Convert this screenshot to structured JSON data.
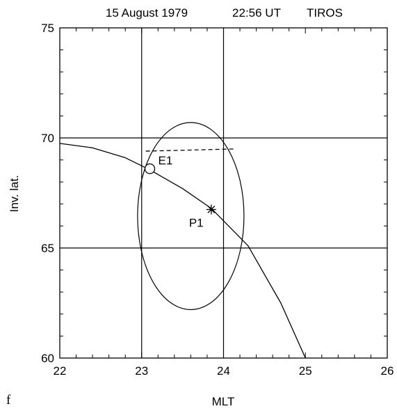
{
  "chart_data": {
    "type": "scatter",
    "title": {
      "date": "15 August 1979",
      "time": "22:56 UT",
      "satellite": "TIROS"
    },
    "panel_label": "f",
    "xlabel": "MLT",
    "ylabel": "Inv. lat.",
    "xlim": [
      22,
      26
    ],
    "ylim": [
      60,
      75
    ],
    "x_major_ticks": [
      22,
      23,
      24,
      25,
      26
    ],
    "y_major_ticks": [
      60,
      65,
      70,
      75
    ],
    "x_tick_labels": [
      "22",
      "23",
      "24",
      "25",
      "26"
    ],
    "y_tick_labels": [
      "60",
      "65",
      "70",
      "75"
    ],
    "x_minor_step": 0.2,
    "y_minor_step": 1,
    "grid": true,
    "grid_x": [
      23,
      24
    ],
    "grid_y": [
      65,
      70
    ],
    "satellite_track": [
      [
        22.0,
        69.75
      ],
      [
        22.4,
        69.55
      ],
      [
        22.8,
        69.1
      ],
      [
        23.1,
        68.55
      ],
      [
        23.5,
        67.7
      ],
      [
        23.85,
        66.8
      ],
      [
        24.3,
        65.1
      ],
      [
        24.7,
        62.5
      ],
      [
        25.0,
        60.0
      ]
    ],
    "ellipse": {
      "cx": 23.6,
      "cy": 66.45,
      "rx": 0.65,
      "ry": 4.25
    },
    "dashed_segment": {
      "x": [
        23.05,
        24.15
      ],
      "y": [
        69.4,
        69.5
      ]
    },
    "points": [
      {
        "label": "E1",
        "x": 23.1,
        "y": 68.6,
        "marker": "circle"
      },
      {
        "label": "P1",
        "x": 23.85,
        "y": 66.75,
        "marker": "star"
      }
    ],
    "colors": {
      "line": "#000000",
      "background": "#ffffff"
    }
  }
}
